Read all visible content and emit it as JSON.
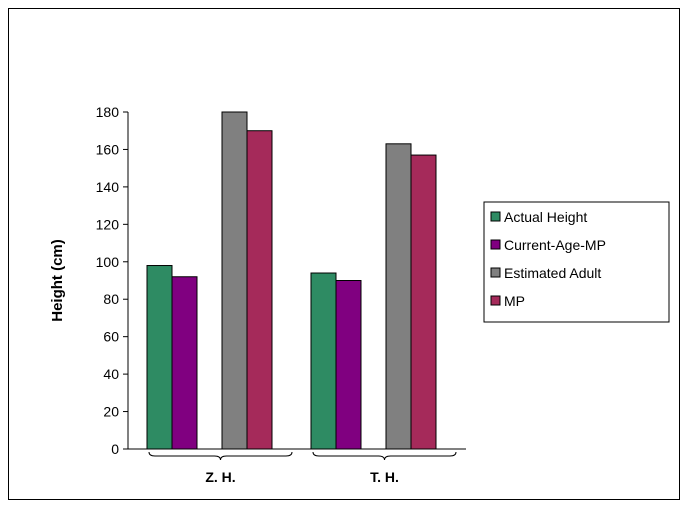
{
  "chart_data": {
    "type": "bar",
    "categories": [
      "Z. H.",
      "T. H."
    ],
    "series": [
      {
        "name": "Actual Height",
        "values": [
          98,
          94
        ],
        "color": "#2e8b63"
      },
      {
        "name": "Current-Age-MP",
        "values": [
          92,
          90
        ],
        "color": "#800080"
      },
      {
        "name": "Estimated Adult",
        "values": [
          180,
          163
        ],
        "color": "#808080"
      },
      {
        "name": "MP",
        "values": [
          170,
          157
        ],
        "color": "#a52a5a"
      }
    ],
    "title": "",
    "xlabel": "",
    "ylabel": "Height (cm)",
    "ylim": [
      0,
      180
    ],
    "yticks": [
      0,
      20,
      40,
      60,
      80,
      100,
      120,
      140,
      160,
      180
    ],
    "grid": false,
    "legend_position": "right"
  }
}
